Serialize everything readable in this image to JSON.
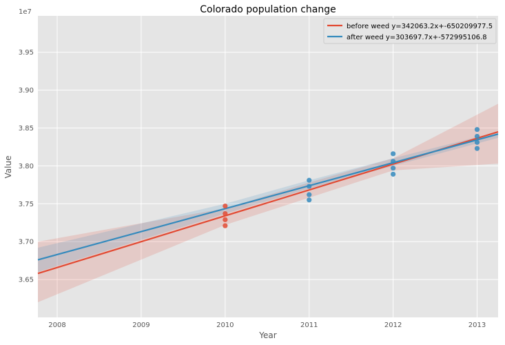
{
  "chart_data": {
    "type": "scatter",
    "title": "Colorado population change",
    "xlabel": "Year",
    "ylabel": "Value",
    "y_offset_label": "1e7",
    "xlim": [
      2007.77,
      2013.25
    ],
    "ylim": [
      36.0,
      39.98
    ],
    "x_ticks": [
      2008,
      2009,
      2010,
      2011,
      2012,
      2013
    ],
    "x_tick_labels": [
      "2008",
      "2009",
      "2010",
      "2011",
      "2012",
      "2013"
    ],
    "y_ticks": [
      36.5,
      37.0,
      37.5,
      38.0,
      38.5,
      39.0,
      39.5
    ],
    "y_tick_labels": [
      "3.65",
      "3.70",
      "3.75",
      "3.80",
      "3.85",
      "3.90",
      "3.95"
    ],
    "grid": true,
    "legend_position": "top-right",
    "series": [
      {
        "name": "before weed y=342063.2x+-650209977.5",
        "color": "#E24A33",
        "points": [
          {
            "x": 2010,
            "y": 37.47
          },
          {
            "x": 2010,
            "y": 37.37
          },
          {
            "x": 2010,
            "y": 37.29
          },
          {
            "x": 2010,
            "y": 37.21
          }
        ],
        "fit_line": [
          {
            "x": 2007.77,
            "y": 36.58
          },
          {
            "x": 2013.25,
            "y": 38.45
          }
        ],
        "band_upper": [
          {
            "x": 2007.77,
            "y": 37.0
          },
          {
            "x": 2010.0,
            "y": 37.44
          },
          {
            "x": 2011.0,
            "y": 37.78
          },
          {
            "x": 2012.0,
            "y": 38.1
          },
          {
            "x": 2013.25,
            "y": 38.82
          }
        ],
        "band_lower": [
          {
            "x": 2007.77,
            "y": 36.2
          },
          {
            "x": 2010.0,
            "y": 37.22
          },
          {
            "x": 2011.0,
            "y": 37.58
          },
          {
            "x": 2012.0,
            "y": 37.94
          },
          {
            "x": 2013.25,
            "y": 38.03
          }
        ]
      },
      {
        "name": "after weed y=303697.7x+-572995106.8",
        "color": "#348ABD",
        "points": [
          {
            "x": 2011,
            "y": 37.81
          },
          {
            "x": 2011,
            "y": 37.73
          },
          {
            "x": 2011,
            "y": 37.62
          },
          {
            "x": 2011,
            "y": 37.55
          },
          {
            "x": 2012,
            "y": 38.16
          },
          {
            "x": 2012,
            "y": 38.06
          },
          {
            "x": 2012,
            "y": 37.97
          },
          {
            "x": 2012,
            "y": 37.89
          },
          {
            "x": 2013,
            "y": 38.48
          },
          {
            "x": 2013,
            "y": 38.39
          },
          {
            "x": 2013,
            "y": 38.31
          },
          {
            "x": 2013,
            "y": 38.23
          }
        ],
        "fit_line": [
          {
            "x": 2007.77,
            "y": 36.76
          },
          {
            "x": 2013.25,
            "y": 38.42
          }
        ],
        "band_upper": [
          {
            "x": 2007.77,
            "y": 36.92
          },
          {
            "x": 2010.0,
            "y": 37.5
          },
          {
            "x": 2011.0,
            "y": 37.81
          },
          {
            "x": 2012.0,
            "y": 38.1
          },
          {
            "x": 2013.25,
            "y": 38.45
          }
        ],
        "band_lower": [
          {
            "x": 2007.77,
            "y": 36.6
          },
          {
            "x": 2010.0,
            "y": 37.37
          },
          {
            "x": 2011.0,
            "y": 37.7
          },
          {
            "x": 2012.0,
            "y": 38.0
          },
          {
            "x": 2013.25,
            "y": 38.37
          }
        ]
      }
    ]
  }
}
